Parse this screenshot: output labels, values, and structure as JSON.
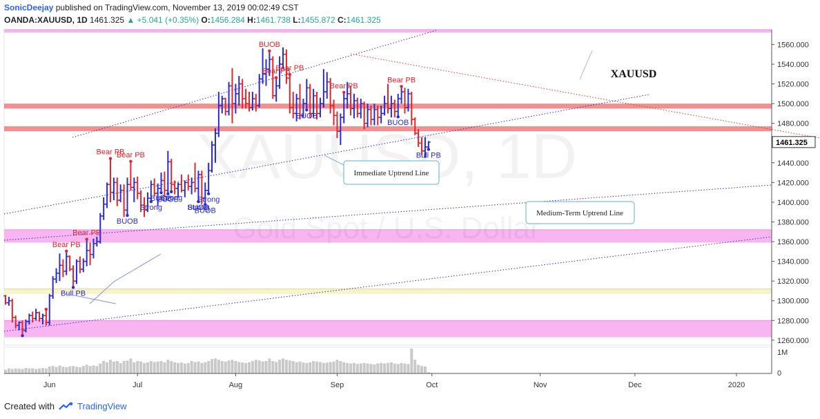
{
  "header": {
    "user": "SonicDeejay",
    "published_text": "published on TradingView.com, November 13, 2019 00:02:49 CST",
    "symbol": "OANDA:XAUUSD, 1D",
    "last": "1461.325",
    "change": "+5.041 (+0.35%)",
    "o_label": "O:",
    "o_value": "1456.284",
    "h_label": "H:",
    "h_value": "1461.738",
    "l_label": "L:",
    "l_value": "1455.872",
    "c_label": "C:",
    "c_value": "1461.325"
  },
  "footer": {
    "created_with": "Created with",
    "brand": "TradingView"
  },
  "colors": {
    "bull": "#2929d6",
    "bear": "#e3242b",
    "zone_red": "#f07b7b",
    "zone_pink": "#f7a8f0",
    "zone_yellow": "#f6f2c4"
  },
  "chart_data": {
    "type": "ohlc",
    "symbol_watermark": "XAUUSD, 1D",
    "subtitle_watermark": "Gold Spot / U.S. Dollar",
    "label": "XAUUSD",
    "price_tag": "1461.325",
    "ylim": [
      1255,
      1575
    ],
    "y_ticks": [
      1260,
      1280,
      1300,
      1320,
      1340,
      1360,
      1380,
      1400,
      1420,
      1440,
      1460,
      1480,
      1500,
      1520,
      1540,
      1560
    ],
    "y_tick_labels": [
      "1260.000",
      "1280.000",
      "1300.000",
      "1320.000",
      "1340.000",
      "1360.000",
      "1380.000",
      "1400.000",
      "1420.000",
      "1440.000",
      "1460.000",
      "1480.000",
      "1500.000",
      "1520.000",
      "1540.000",
      "1560.000"
    ],
    "x_ticks": [
      "Jun",
      "Jul",
      "Aug",
      "Sep",
      "Oct",
      "Nov",
      "Dec",
      "2020"
    ],
    "x_tick_index": [
      13,
      39,
      68,
      98,
      126,
      158,
      186,
      216
    ],
    "volume_label": "1M",
    "volume_zero": "0",
    "zones": [
      {
        "low": 1572,
        "high": 1575,
        "color": "pink"
      },
      {
        "low": 1495,
        "high": 1500,
        "color": "red"
      },
      {
        "low": 1472,
        "high": 1477,
        "color": "red"
      },
      {
        "low": 1359,
        "high": 1372,
        "color": "pink"
      },
      {
        "low": 1307,
        "high": 1312,
        "color": "yellow"
      },
      {
        "low": 1263,
        "high": 1280,
        "color": "pink"
      }
    ],
    "candles": [
      {
        "o": 1305,
        "h": 1306,
        "l": 1296,
        "c": 1298
      },
      {
        "o": 1298,
        "h": 1304,
        "l": 1295,
        "c": 1300
      },
      {
        "o": 1300,
        "h": 1302,
        "l": 1278,
        "c": 1283
      },
      {
        "o": 1283,
        "h": 1285,
        "l": 1272,
        "c": 1275
      },
      {
        "o": 1275,
        "h": 1279,
        "l": 1270,
        "c": 1278
      },
      {
        "o": 1278,
        "h": 1280,
        "l": 1266,
        "c": 1270
      },
      {
        "o": 1270,
        "h": 1281,
        "l": 1268,
        "c": 1279
      },
      {
        "o": 1279,
        "h": 1287,
        "l": 1276,
        "c": 1285
      },
      {
        "o": 1285,
        "h": 1289,
        "l": 1278,
        "c": 1282
      },
      {
        "o": 1282,
        "h": 1292,
        "l": 1280,
        "c": 1288
      },
      {
        "o": 1288,
        "h": 1289,
        "l": 1279,
        "c": 1282
      },
      {
        "o": 1282,
        "h": 1287,
        "l": 1276,
        "c": 1285
      },
      {
        "o": 1285,
        "h": 1290,
        "l": 1275,
        "c": 1278
      },
      {
        "o": 1278,
        "h": 1307,
        "l": 1275,
        "c": 1305
      },
      {
        "o": 1305,
        "h": 1325,
        "l": 1302,
        "c": 1322
      },
      {
        "o": 1322,
        "h": 1333,
        "l": 1318,
        "c": 1328
      },
      {
        "o": 1328,
        "h": 1348,
        "l": 1320,
        "c": 1336
      },
      {
        "o": 1336,
        "h": 1342,
        "l": 1324,
        "c": 1330
      },
      {
        "o": 1330,
        "h": 1349,
        "l": 1326,
        "c": 1345
      },
      {
        "o": 1345,
        "h": 1346,
        "l": 1330,
        "c": 1332
      },
      {
        "o": 1332,
        "h": 1336,
        "l": 1315,
        "c": 1320
      },
      {
        "o": 1320,
        "h": 1342,
        "l": 1317,
        "c": 1340
      },
      {
        "o": 1340,
        "h": 1345,
        "l": 1328,
        "c": 1332
      },
      {
        "o": 1332,
        "h": 1343,
        "l": 1329,
        "c": 1340
      },
      {
        "o": 1340,
        "h": 1361,
        "l": 1335,
        "c": 1351
      },
      {
        "o": 1351,
        "h": 1359,
        "l": 1336,
        "c": 1347
      },
      {
        "o": 1347,
        "h": 1363,
        "l": 1343,
        "c": 1358
      },
      {
        "o": 1358,
        "h": 1365,
        "l": 1355,
        "c": 1360
      },
      {
        "o": 1360,
        "h": 1389,
        "l": 1358,
        "c": 1386
      },
      {
        "o": 1386,
        "h": 1405,
        "l": 1382,
        "c": 1398
      },
      {
        "o": 1398,
        "h": 1420,
        "l": 1394,
        "c": 1418
      },
      {
        "o": 1418,
        "h": 1443,
        "l": 1400,
        "c": 1410
      },
      {
        "o": 1410,
        "h": 1425,
        "l": 1402,
        "c": 1420
      },
      {
        "o": 1420,
        "h": 1425,
        "l": 1396,
        "c": 1402
      },
      {
        "o": 1402,
        "h": 1418,
        "l": 1400,
        "c": 1412
      },
      {
        "o": 1412,
        "h": 1418,
        "l": 1385,
        "c": 1392
      },
      {
        "o": 1392,
        "h": 1425,
        "l": 1388,
        "c": 1418
      },
      {
        "o": 1418,
        "h": 1440,
        "l": 1412,
        "c": 1415
      },
      {
        "o": 1415,
        "h": 1425,
        "l": 1400,
        "c": 1420
      },
      {
        "o": 1420,
        "h": 1426,
        "l": 1403,
        "c": 1409
      },
      {
        "o": 1409,
        "h": 1412,
        "l": 1390,
        "c": 1397
      },
      {
        "o": 1397,
        "h": 1405,
        "l": 1385,
        "c": 1392
      },
      {
        "o": 1392,
        "h": 1410,
        "l": 1390,
        "c": 1404
      },
      {
        "o": 1404,
        "h": 1422,
        "l": 1402,
        "c": 1418
      },
      {
        "o": 1418,
        "h": 1424,
        "l": 1406,
        "c": 1409
      },
      {
        "o": 1409,
        "h": 1419,
        "l": 1396,
        "c": 1414
      },
      {
        "o": 1414,
        "h": 1430,
        "l": 1411,
        "c": 1422
      },
      {
        "o": 1422,
        "h": 1431,
        "l": 1405,
        "c": 1412
      },
      {
        "o": 1412,
        "h": 1452,
        "l": 1410,
        "c": 1441
      },
      {
        "o": 1441,
        "h": 1444,
        "l": 1412,
        "c": 1418
      },
      {
        "o": 1418,
        "h": 1422,
        "l": 1408,
        "c": 1414
      },
      {
        "o": 1414,
        "h": 1420,
        "l": 1405,
        "c": 1418
      },
      {
        "o": 1418,
        "h": 1428,
        "l": 1410,
        "c": 1412
      },
      {
        "o": 1412,
        "h": 1422,
        "l": 1405,
        "c": 1420
      },
      {
        "o": 1420,
        "h": 1428,
        "l": 1412,
        "c": 1416
      },
      {
        "o": 1416,
        "h": 1425,
        "l": 1408,
        "c": 1420
      },
      {
        "o": 1420,
        "h": 1440,
        "l": 1410,
        "c": 1414
      },
      {
        "o": 1414,
        "h": 1432,
        "l": 1402,
        "c": 1428
      },
      {
        "o": 1428,
        "h": 1432,
        "l": 1398,
        "c": 1404
      },
      {
        "o": 1404,
        "h": 1420,
        "l": 1399,
        "c": 1412
      },
      {
        "o": 1412,
        "h": 1440,
        "l": 1410,
        "c": 1432
      },
      {
        "o": 1432,
        "h": 1462,
        "l": 1430,
        "c": 1458
      },
      {
        "o": 1458,
        "h": 1475,
        "l": 1440,
        "c": 1470
      },
      {
        "o": 1470,
        "h": 1512,
        "l": 1466,
        "c": 1498
      },
      {
        "o": 1498,
        "h": 1508,
        "l": 1490,
        "c": 1505
      },
      {
        "o": 1505,
        "h": 1506,
        "l": 1488,
        "c": 1492
      },
      {
        "o": 1492,
        "h": 1522,
        "l": 1488,
        "c": 1518
      },
      {
        "o": 1518,
        "h": 1536,
        "l": 1480,
        "c": 1500
      },
      {
        "o": 1500,
        "h": 1520,
        "l": 1490,
        "c": 1510
      },
      {
        "o": 1510,
        "h": 1528,
        "l": 1498,
        "c": 1520
      },
      {
        "o": 1520,
        "h": 1525,
        "l": 1495,
        "c": 1505
      },
      {
        "o": 1505,
        "h": 1515,
        "l": 1495,
        "c": 1500
      },
      {
        "o": 1500,
        "h": 1512,
        "l": 1492,
        "c": 1496
      },
      {
        "o": 1496,
        "h": 1512,
        "l": 1493,
        "c": 1505
      },
      {
        "o": 1505,
        "h": 1510,
        "l": 1492,
        "c": 1498
      },
      {
        "o": 1498,
        "h": 1530,
        "l": 1496,
        "c": 1525
      },
      {
        "o": 1525,
        "h": 1556,
        "l": 1520,
        "c": 1530
      },
      {
        "o": 1530,
        "h": 1545,
        "l": 1518,
        "c": 1535
      },
      {
        "o": 1535,
        "h": 1552,
        "l": 1528,
        "c": 1545
      },
      {
        "o": 1545,
        "h": 1548,
        "l": 1505,
        "c": 1508
      },
      {
        "o": 1508,
        "h": 1525,
        "l": 1502,
        "c": 1518
      },
      {
        "o": 1518,
        "h": 1548,
        "l": 1515,
        "c": 1540
      },
      {
        "o": 1540,
        "h": 1557,
        "l": 1535,
        "c": 1550
      },
      {
        "o": 1550,
        "h": 1555,
        "l": 1520,
        "c": 1526
      },
      {
        "o": 1526,
        "h": 1528,
        "l": 1490,
        "c": 1496
      },
      {
        "o": 1496,
        "h": 1512,
        "l": 1485,
        "c": 1490
      },
      {
        "o": 1490,
        "h": 1510,
        "l": 1482,
        "c": 1505
      },
      {
        "o": 1505,
        "h": 1520,
        "l": 1484,
        "c": 1488
      },
      {
        "o": 1488,
        "h": 1505,
        "l": 1486,
        "c": 1500
      },
      {
        "o": 1500,
        "h": 1525,
        "l": 1495,
        "c": 1516
      },
      {
        "o": 1516,
        "h": 1520,
        "l": 1485,
        "c": 1490
      },
      {
        "o": 1490,
        "h": 1515,
        "l": 1486,
        "c": 1508
      },
      {
        "o": 1508,
        "h": 1512,
        "l": 1484,
        "c": 1490
      },
      {
        "o": 1490,
        "h": 1506,
        "l": 1486,
        "c": 1500
      },
      {
        "o": 1500,
        "h": 1535,
        "l": 1496,
        "c": 1512
      },
      {
        "o": 1512,
        "h": 1532,
        "l": 1505,
        "c": 1522
      },
      {
        "o": 1522,
        "h": 1526,
        "l": 1490,
        "c": 1498
      },
      {
        "o": 1498,
        "h": 1504,
        "l": 1478,
        "c": 1488
      },
      {
        "o": 1488,
        "h": 1492,
        "l": 1465,
        "c": 1472
      },
      {
        "o": 1472,
        "h": 1490,
        "l": 1458,
        "c": 1486
      },
      {
        "o": 1486,
        "h": 1510,
        "l": 1480,
        "c": 1505
      },
      {
        "o": 1505,
        "h": 1522,
        "l": 1495,
        "c": 1510
      },
      {
        "o": 1510,
        "h": 1518,
        "l": 1488,
        "c": 1495
      },
      {
        "o": 1495,
        "h": 1510,
        "l": 1485,
        "c": 1503
      },
      {
        "o": 1503,
        "h": 1506,
        "l": 1486,
        "c": 1490
      },
      {
        "o": 1490,
        "h": 1505,
        "l": 1485,
        "c": 1500
      },
      {
        "o": 1500,
        "h": 1502,
        "l": 1474,
        "c": 1480
      },
      {
        "o": 1480,
        "h": 1500,
        "l": 1476,
        "c": 1494
      },
      {
        "o": 1494,
        "h": 1498,
        "l": 1478,
        "c": 1484
      },
      {
        "o": 1484,
        "h": 1500,
        "l": 1478,
        "c": 1494
      },
      {
        "o": 1494,
        "h": 1498,
        "l": 1478,
        "c": 1486
      },
      {
        "o": 1486,
        "h": 1498,
        "l": 1480,
        "c": 1490
      },
      {
        "o": 1490,
        "h": 1508,
        "l": 1488,
        "c": 1500
      },
      {
        "o": 1500,
        "h": 1520,
        "l": 1490,
        "c": 1495
      },
      {
        "o": 1495,
        "h": 1508,
        "l": 1486,
        "c": 1500
      },
      {
        "o": 1500,
        "h": 1504,
        "l": 1486,
        "c": 1492
      },
      {
        "o": 1492,
        "h": 1510,
        "l": 1488,
        "c": 1505
      },
      {
        "o": 1505,
        "h": 1516,
        "l": 1500,
        "c": 1512
      },
      {
        "o": 1512,
        "h": 1516,
        "l": 1490,
        "c": 1496
      },
      {
        "o": 1496,
        "h": 1515,
        "l": 1492,
        "c": 1510
      },
      {
        "o": 1510,
        "h": 1512,
        "l": 1478,
        "c": 1484
      },
      {
        "o": 1484,
        "h": 1486,
        "l": 1468,
        "c": 1470
      },
      {
        "o": 1470,
        "h": 1474,
        "l": 1456,
        "c": 1460
      },
      {
        "o": 1460,
        "h": 1466,
        "l": 1448,
        "c": 1452
      },
      {
        "o": 1452,
        "h": 1466,
        "l": 1445,
        "c": 1456
      },
      {
        "o": 1456,
        "h": 1462,
        "l": 1455,
        "c": 1461
      }
    ],
    "volumes": [
      0.15,
      0.2,
      0.18,
      0.2,
      0.19,
      0.18,
      0.22,
      0.2,
      0.21,
      0.18,
      0.2,
      0.22,
      0.2,
      0.28,
      0.3,
      0.26,
      0.32,
      0.27,
      0.25,
      0.28,
      0.3,
      0.27,
      0.25,
      0.3,
      0.35,
      0.3,
      0.32,
      0.3,
      0.4,
      0.5,
      0.45,
      0.55,
      0.48,
      0.5,
      0.42,
      0.5,
      0.52,
      0.6,
      0.45,
      0.5,
      0.48,
      0.42,
      0.45,
      0.5,
      0.46,
      0.48,
      0.5,
      0.45,
      0.55,
      0.5,
      0.45,
      0.42,
      0.44,
      0.4,
      0.42,
      0.5,
      0.46,
      0.48,
      0.42,
      0.45,
      0.5,
      0.58,
      0.6,
      0.55,
      0.5,
      0.48,
      0.52,
      0.55,
      0.5,
      0.46,
      0.44,
      0.42,
      0.45,
      0.5,
      0.55,
      0.52,
      0.48,
      0.5,
      0.6,
      0.5,
      0.46,
      0.55,
      0.6,
      0.55,
      0.52,
      0.5,
      0.45,
      0.48,
      0.44,
      0.42,
      0.45,
      0.5,
      0.48,
      0.46,
      0.42,
      0.44,
      0.46,
      0.48,
      0.55,
      0.5,
      0.45,
      0.42,
      0.4,
      0.42,
      0.38,
      0.4,
      0.42,
      0.4,
      0.38,
      0.36,
      0.4,
      0.42,
      0.4,
      0.42,
      0.45,
      0.4,
      0.38,
      0.42,
      0.4,
      0.38,
      1.0,
      0.55,
      0.35,
      0.3,
      0.28,
      0.05
    ],
    "markers": [
      {
        "i": 5,
        "text": "",
        "kind": "bull"
      },
      {
        "i": 12,
        "text": "",
        "kind": "bear"
      },
      {
        "i": 18,
        "text": "Bear PB",
        "kind": "bear"
      },
      {
        "i": 20,
        "text": "Bull PB",
        "kind": "bull"
      },
      {
        "i": 24,
        "text": "Bear PB",
        "kind": "bear"
      },
      {
        "i": 31,
        "text": "Bear PB",
        "kind": "bear"
      },
      {
        "i": 37,
        "text": "Bear PB",
        "kind": "bear"
      },
      {
        "i": 36,
        "text": "BUOB",
        "kind": "bull"
      },
      {
        "i": 43,
        "text": "Strong",
        "kind": "bull"
      },
      {
        "i": 49,
        "text": "Strong",
        "kind": "bull"
      },
      {
        "i": 48,
        "text": "BUOB",
        "kind": "bull"
      },
      {
        "i": 46,
        "text": "BUOB",
        "kind": "bull"
      },
      {
        "i": 57,
        "text": "Strong",
        "kind": "bull"
      },
      {
        "i": 57,
        "text": "BUOB",
        "kind": "bull"
      },
      {
        "i": 59,
        "text": "BUOB",
        "kind": "bull"
      },
      {
        "i": 60,
        "text": "Strong",
        "kind": "bull"
      },
      {
        "i": 80,
        "text": "Bear PB",
        "kind": "bear"
      },
      {
        "i": 84,
        "text": "Bear PB",
        "kind": "bear"
      },
      {
        "i": 78,
        "text": "BUOB",
        "kind": "bear"
      },
      {
        "i": 89,
        "text": "BUOB",
        "kind": "bull"
      },
      {
        "i": 100,
        "text": "Bear PB",
        "kind": "bear"
      },
      {
        "i": 116,
        "text": "BUOB",
        "kind": "bull"
      },
      {
        "i": 117,
        "text": "Bear PB",
        "kind": "bear"
      },
      {
        "i": 125,
        "text": "Bull PB",
        "kind": "bull"
      }
    ],
    "callouts": [
      {
        "text": "Immediate Uptrend Line"
      },
      {
        "text": "Medium-Term Uptrend Line"
      }
    ]
  }
}
